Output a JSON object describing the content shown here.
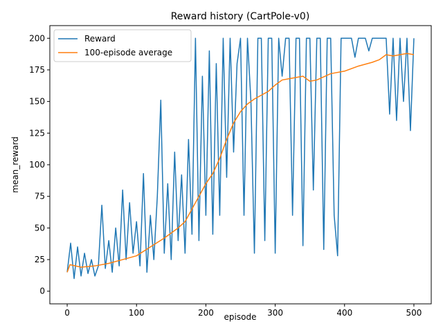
{
  "chart_data": {
    "type": "line",
    "title": "Reward history (CartPole-v0)",
    "x_label": "episode",
    "y_label": "mean_reward",
    "xlim": [
      -25,
      525
    ],
    "ylim": [
      -10,
      210
    ],
    "xticks": [
      0,
      100,
      200,
      300,
      400,
      500
    ],
    "yticks": [
      0,
      25,
      50,
      75,
      100,
      125,
      150,
      175,
      200
    ],
    "legend": "upper left",
    "grid": false,
    "series": [
      {
        "name": "Reward",
        "color": "#1f77b4",
        "x": [
          0,
          5,
          10,
          15,
          20,
          25,
          30,
          35,
          40,
          45,
          50,
          55,
          60,
          65,
          70,
          75,
          80,
          85,
          90,
          95,
          100,
          105,
          110,
          115,
          120,
          125,
          130,
          135,
          140,
          145,
          150,
          155,
          160,
          165,
          170,
          175,
          180,
          185,
          190,
          195,
          200,
          205,
          210,
          215,
          220,
          225,
          230,
          235,
          240,
          245,
          250,
          255,
          260,
          265,
          270,
          275,
          280,
          285,
          290,
          295,
          300,
          305,
          310,
          315,
          320,
          325,
          330,
          335,
          340,
          345,
          350,
          355,
          360,
          365,
          370,
          375,
          380,
          385,
          390,
          395,
          400,
          405,
          410,
          415,
          420,
          425,
          430,
          435,
          440,
          445,
          450,
          455,
          460,
          465,
          470,
          475,
          480,
          485,
          490,
          495,
          500
        ],
        "values": [
          15,
          38,
          10,
          35,
          12,
          30,
          14,
          25,
          12,
          20,
          68,
          18,
          40,
          15,
          50,
          20,
          80,
          25,
          70,
          30,
          55,
          20,
          93,
          15,
          60,
          25,
          75,
          151,
          30,
          85,
          25,
          110,
          40,
          92,
          30,
          120,
          45,
          200,
          40,
          170,
          60,
          190,
          45,
          180,
          60,
          200,
          90,
          200,
          110,
          180,
          200,
          60,
          200,
          150,
          30,
          200,
          200,
          40,
          200,
          200,
          30,
          200,
          170,
          200,
          200,
          60,
          200,
          200,
          36,
          200,
          200,
          80,
          200,
          200,
          33,
          200,
          200,
          60,
          28,
          200,
          200,
          200,
          200,
          185,
          200,
          200,
          200,
          190,
          200,
          200,
          200,
          200,
          200,
          140,
          200,
          135,
          200,
          150,
          200,
          127,
          200
        ]
      },
      {
        "name": "100-episode average",
        "color": "#ff7f0e",
        "x": [
          0,
          4,
          20,
          40,
          60,
          80,
          100,
          120,
          140,
          160,
          170,
          180,
          190,
          200,
          210,
          220,
          230,
          240,
          250,
          260,
          270,
          280,
          290,
          300,
          310,
          320,
          340,
          350,
          360,
          380,
          400,
          420,
          440,
          450,
          460,
          470,
          480,
          490,
          500
        ],
        "values": [
          15,
          21,
          19,
          20,
          22,
          25,
          28,
          35,
          42,
          50,
          55,
          65,
          75,
          85,
          93,
          105,
          120,
          133,
          142,
          148,
          152,
          155,
          158,
          163,
          167,
          168,
          170,
          166,
          167,
          172,
          174,
          178,
          181,
          183,
          187,
          186,
          187,
          188,
          187
        ]
      }
    ]
  }
}
